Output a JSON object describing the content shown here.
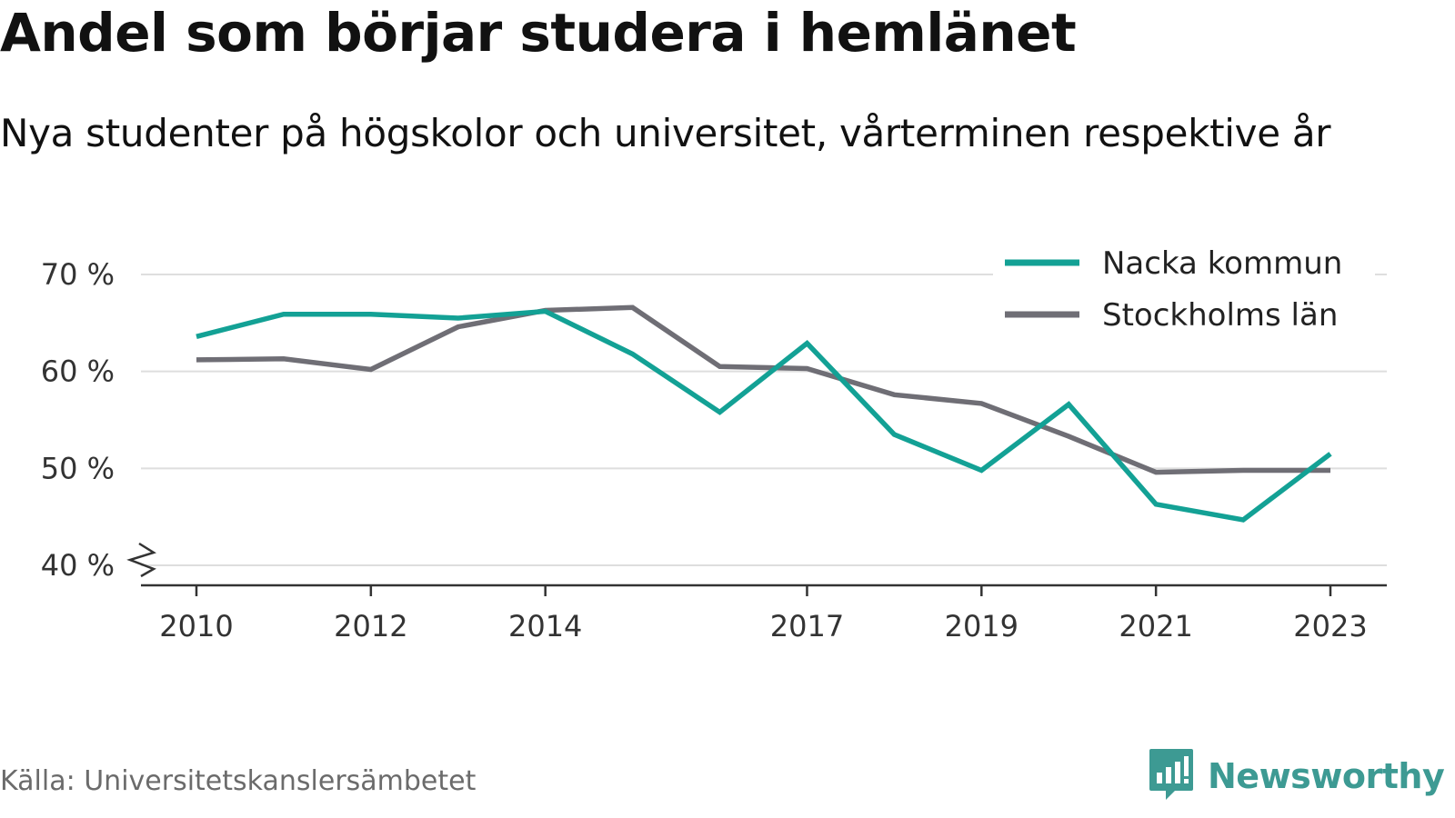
{
  "header": {
    "title": "Andel som börjar studera i hemlänet",
    "subtitle": "Nya studenter på högskolor och universitet, vårterminen respektive år"
  },
  "footer": {
    "source": "Källa: Universitetskanslersämbetet",
    "brand": "Newsworthy",
    "brand_icon": "newsworthy-logo-icon"
  },
  "colors": {
    "nacka": "#13a195",
    "stockholm": "#6f6e75",
    "grid": "#dedede",
    "axis": "#333333",
    "brand": "#3d9a93"
  },
  "chart_data": {
    "type": "line",
    "title": "Andel som börjar studera i hemlänet",
    "subtitle": "Nya studenter på högskolor och universitet, vårterminen respektive år",
    "xlabel": "",
    "ylabel": "",
    "x": [
      2010,
      2011,
      2012,
      2013,
      2014,
      2015,
      2016,
      2017,
      2018,
      2019,
      2020,
      2021,
      2022,
      2023
    ],
    "x_tick_labels": [
      "2010",
      "2012",
      "2014",
      "2017",
      "2019",
      "2021",
      "2023"
    ],
    "x_tick_values": [
      2010,
      2012,
      2014,
      2017,
      2019,
      2021,
      2023
    ],
    "y_tick_labels": [
      "70 %",
      "60 %",
      "50 %",
      "40 %"
    ],
    "y_tick_values": [
      70,
      60,
      50,
      40
    ],
    "ylim": [
      40,
      70
    ],
    "y_axis_break": true,
    "grid": true,
    "legend_position": "top-right",
    "series": [
      {
        "name": "Nacka kommun",
        "color": "#13a195",
        "values": [
          63.6,
          65.9,
          65.9,
          65.5,
          66.2,
          61.8,
          55.8,
          62.9,
          53.5,
          49.8,
          56.6,
          46.3,
          44.7,
          51.5
        ]
      },
      {
        "name": "Stockholms län",
        "color": "#6f6e75",
        "values": [
          61.2,
          61.3,
          60.2,
          64.6,
          66.3,
          66.6,
          60.5,
          60.3,
          57.6,
          56.7,
          53.3,
          49.6,
          49.8,
          49.8
        ]
      }
    ]
  }
}
